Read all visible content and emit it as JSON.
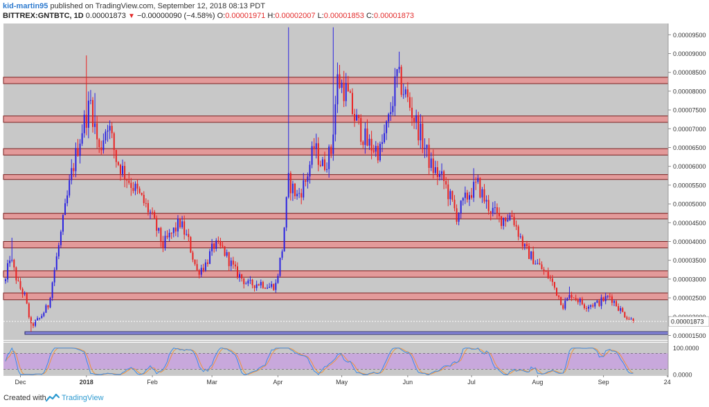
{
  "header": {
    "author": "kid-martin95",
    "published_text": "published on TradingView.com, September 12, 2018 08:13 PDT",
    "symbol_line": "BITTREX:GNTBTC, 1D",
    "last_price": "0.00001873",
    "change_arrow": "▼",
    "change": "−0.00000090 (−4.58%)",
    "open_label": "O:",
    "open": "0.00001971",
    "high_label": "H:",
    "high": "0.00002007",
    "low_label": "L:",
    "low": "0.00001853",
    "close_label": "C:",
    "close": "0.00001873"
  },
  "footer": {
    "created_with": "Created with",
    "brand": "TradingView"
  },
  "colors": {
    "plot_bg": "#c8c8c8",
    "up": "#2a22e0",
    "down": "#ea2222",
    "zone_fill": "#e39a9a",
    "zone_border": "#7a1f1f",
    "support_fill": "#8c8ce0",
    "osc_fill": "#c8a8dc",
    "stoch_k": "#3b8be8",
    "stoch_d": "#f0923a"
  },
  "chart_data": {
    "type": "candlestick",
    "price_axis": {
      "ylim": [
        1.38e-05,
        9.8e-05
      ],
      "ticks": [
        "0.00009500",
        "0.00009000",
        "0.00008500",
        "0.00008000",
        "0.00007500",
        "0.00007000",
        "0.00006500",
        "0.00006000",
        "0.00005500",
        "0.00005000",
        "0.00004500",
        "0.00004000",
        "0.00003500",
        "0.00003000",
        "0.00002500",
        "0.00002000",
        "0.00001500"
      ],
      "tick_values": [
        9.5e-05,
        9e-05,
        8.5e-05,
        8e-05,
        7.5e-05,
        7e-05,
        6.5e-05,
        6e-05,
        5.5e-05,
        5e-05,
        4.5e-05,
        4e-05,
        3.5e-05,
        3e-05,
        2.5e-05,
        2e-05,
        1.5e-05
      ],
      "last_label": "0.00001873",
      "last_value": 1.873e-05
    },
    "x_axis": {
      "labels": [
        "Dec",
        "2018",
        "Feb",
        "Mar",
        "Apr",
        "May",
        "Jun",
        "Jul",
        "Aug",
        "Sep",
        "24"
      ],
      "label_days": [
        7,
        38,
        69,
        97,
        128,
        158,
        189,
        219,
        250,
        281,
        311
      ]
    },
    "resistance_zones": [
      [
        8.2e-05,
        8.37e-05
      ],
      [
        7.17e-05,
        7.34e-05
      ],
      [
        6.3e-05,
        6.47e-05
      ],
      [
        5.65e-05,
        5.78e-05
      ],
      [
        4.6e-05,
        4.75e-05
      ],
      [
        3.83e-05,
        4e-05
      ],
      [
        3.05e-05,
        3.22e-05
      ],
      [
        2.45e-05,
        2.63e-05
      ]
    ],
    "support_zone": [
      1.53e-05,
      1.6e-05
    ],
    "key_points": [
      {
        "day": 0,
        "price": 2.95e-05
      },
      {
        "day": 2,
        "price": 3.6e-05
      },
      {
        "day": 6,
        "price": 2.85e-05
      },
      {
        "day": 9,
        "price": 2.55e-05
      },
      {
        "day": 12,
        "price": 1.75e-05
      },
      {
        "day": 16,
        "price": 1.95e-05
      },
      {
        "day": 20,
        "price": 2.3e-05
      },
      {
        "day": 26,
        "price": 4.2e-05
      },
      {
        "day": 31,
        "price": 5.8e-05
      },
      {
        "day": 36,
        "price": 7e-05
      },
      {
        "day": 40,
        "price": 7.7e-05
      },
      {
        "day": 44,
        "price": 6.4e-05
      },
      {
        "day": 48,
        "price": 7.2e-05
      },
      {
        "day": 52,
        "price": 6.2e-05
      },
      {
        "day": 56,
        "price": 5.8e-05
      },
      {
        "day": 62,
        "price": 5.3e-05
      },
      {
        "day": 68,
        "price": 4.75e-05
      },
      {
        "day": 74,
        "price": 3.9e-05
      },
      {
        "day": 78,
        "price": 4.2e-05
      },
      {
        "day": 82,
        "price": 4.5e-05
      },
      {
        "day": 86,
        "price": 4e-05
      },
      {
        "day": 90,
        "price": 3.2e-05
      },
      {
        "day": 94,
        "price": 3.4e-05
      },
      {
        "day": 98,
        "price": 3.9e-05
      },
      {
        "day": 102,
        "price": 3.8e-05
      },
      {
        "day": 108,
        "price": 3.2e-05
      },
      {
        "day": 114,
        "price": 2.85e-05
      },
      {
        "day": 120,
        "price": 2.9e-05
      },
      {
        "day": 124,
        "price": 2.8e-05
      },
      {
        "day": 127,
        "price": 2.85e-05
      },
      {
        "day": 130,
        "price": 3.8e-05
      },
      {
        "day": 133,
        "price": 5.6e-05
      },
      {
        "day": 137,
        "price": 5.2e-05
      },
      {
        "day": 141,
        "price": 5.6e-05
      },
      {
        "day": 145,
        "price": 6.5e-05
      },
      {
        "day": 149,
        "price": 6e-05
      },
      {
        "day": 153,
        "price": 6.4e-05
      },
      {
        "day": 156,
        "price": 8.3e-05
      },
      {
        "day": 160,
        "price": 8e-05
      },
      {
        "day": 164,
        "price": 7.3e-05
      },
      {
        "day": 170,
        "price": 6.6e-05
      },
      {
        "day": 176,
        "price": 6.4e-05
      },
      {
        "day": 180,
        "price": 7.2e-05
      },
      {
        "day": 184,
        "price": 8.4e-05
      },
      {
        "day": 188,
        "price": 7.9e-05
      },
      {
        "day": 194,
        "price": 7e-05
      },
      {
        "day": 200,
        "price": 6e-05
      },
      {
        "day": 206,
        "price": 5.6e-05
      },
      {
        "day": 212,
        "price": 4.7e-05
      },
      {
        "day": 218,
        "price": 5.3e-05
      },
      {
        "day": 222,
        "price": 5.5e-05
      },
      {
        "day": 226,
        "price": 5e-05
      },
      {
        "day": 232,
        "price": 4.6e-05
      },
      {
        "day": 238,
        "price": 4.7e-05
      },
      {
        "day": 244,
        "price": 3.8e-05
      },
      {
        "day": 250,
        "price": 3.4e-05
      },
      {
        "day": 256,
        "price": 3e-05
      },
      {
        "day": 262,
        "price": 2.3e-05
      },
      {
        "day": 266,
        "price": 2.6e-05
      },
      {
        "day": 272,
        "price": 2.3e-05
      },
      {
        "day": 278,
        "price": 2.35e-05
      },
      {
        "day": 284,
        "price": 2.55e-05
      },
      {
        "day": 290,
        "price": 2.1e-05
      },
      {
        "day": 295,
        "price": 1.87e-05
      }
    ],
    "spikes": [
      {
        "day": 3,
        "high": 4.1e-05
      },
      {
        "day": 38,
        "high": 8.95e-05
      },
      {
        "day": 42,
        "high": 7.95e-05
      },
      {
        "day": 133,
        "high": 9.7e-05
      },
      {
        "day": 154,
        "high": 9.7e-05
      },
      {
        "day": 185,
        "high": 9.05e-05
      },
      {
        "day": 220,
        "high": 5.95e-05
      },
      {
        "day": 265,
        "high": 2.8e-05
      }
    ],
    "oscillator": {
      "type": "stochastic_rsi",
      "ylim": [
        0,
        120
      ],
      "band": [
        20,
        80
      ],
      "ticks": [
        "100.0000",
        "0.0000"
      ],
      "tick_values": [
        100,
        0
      ]
    }
  }
}
